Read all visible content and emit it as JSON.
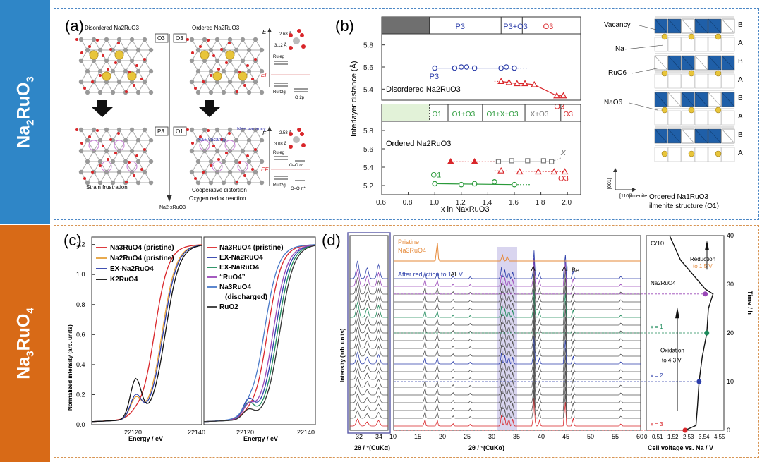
{
  "bands": {
    "top": {
      "base": "Na",
      "sub": "2",
      "tail": "RuO",
      "sub2": "3"
    },
    "bottom": {
      "base": "Na",
      "sub": "3",
      "tail": "RuO",
      "sub2": "4"
    }
  },
  "panel_a": {
    "tag": "(a)",
    "top_left": "Disordered Na2RuO3",
    "top_right": "Ordered Na2RuO3",
    "box_o3": "O3",
    "box_o3b": "O3",
    "box_p3": "P3",
    "box_o1": "O1",
    "na_vac1": "Na+ vacancy",
    "na_vac2": "Na+ vacancy",
    "strain": "Strain frustration",
    "coop": "Cooperative distortion",
    "oxy": "Oxygen redox reaction",
    "bottom_axis": "Na2-xRuO3",
    "d1": "2.68 Å",
    "d2": "3.12 Å",
    "d3": "2.58 Å",
    "d4": "3.08 Å",
    "e_label": "E",
    "ef_label": "EF",
    "ru_eg": "Ru eg",
    "ru_t2g": "Ru t2g",
    "o2p": "O 2p",
    "oo_pi": "O–O π*",
    "oo_sigma": "O–O σ*",
    "ru_eg2": "Ru eg",
    "ru_t2g2": "Ru t2g",
    "oo_pi2": "O–O π*"
  },
  "panel_b": {
    "tag": "(b)",
    "ylabel": "Interlayer distance (Å)",
    "xlabel": "x in NaxRuO3",
    "top_bar": [
      "P3",
      "P3+O3",
      "O3"
    ],
    "bottom_bar": [
      "O1",
      "O1+O3",
      "O1+X+O3",
      "X+O3",
      "O3"
    ],
    "label_disordered": "Disordered Na2RuO3",
    "label_ordered": "Ordered Na2RuO3",
    "series_p3": "P3",
    "series_o3a": "O3",
    "series_o1": "O1",
    "series_x": "X",
    "series_o3b": "O3",
    "yticks_top": [
      "5.8",
      "5.6",
      "5.4"
    ],
    "yticks_bottom": [
      "5.8",
      "5.6",
      "5.4",
      "5.2"
    ],
    "xticks": [
      "0.6",
      "0.8",
      "1.0",
      "1.2",
      "1.4",
      "1.6",
      "1.8",
      "2.0"
    ],
    "struct": {
      "vacancy": "Vacancy",
      "na": "Na",
      "ruo6": "RuO6",
      "nao6": "NaO6",
      "axis1": "[001]",
      "axis2": "[110]ilmenite",
      "caption1": "Ordered Na1RuO3",
      "caption2": "ilmenite structure (O1)",
      "layers": [
        "B",
        "A",
        "B",
        "A",
        "B",
        "A",
        "B",
        "A"
      ]
    }
  },
  "panel_c": {
    "tag": "(c)",
    "ylabel": "Normalized intensity (arb. units)",
    "xlabel": "Energy / eV",
    "yticks": [
      "1.2",
      "1.0",
      "0.8",
      "0.6",
      "0.4",
      "0.2",
      "0.0"
    ],
    "xt_l1": "22120",
    "xt_l2": "22140",
    "xt_r1": "22120",
    "xt_r2": "22140",
    "left_legend": [
      "Na3RuO4 (pristine)",
      "Na2RuO4 (pristine)",
      "EX-Na2RuO4",
      "K2RuO4"
    ],
    "right_legend": [
      "Na3RuO4 (pristine)",
      "EX-Na2RuO4",
      "EX-NaRuO4",
      "“RuO4”",
      "Na3RuO4",
      "(discharged)",
      "RuO2"
    ]
  },
  "panel_d": {
    "tag": "(d)",
    "ylabel": "Intensity (arb. units)",
    "xlabel_small": "2θ / °(CuKα)",
    "xlabel_main": "2θ / °(CuKα)",
    "xlabel_right": "Cell voltage vs. Na / V",
    "ylabel_right": "Time / h",
    "pristine1": "Pristine",
    "pristine2": "Na3RuO4",
    "after_red": "After reduction to 1.5 V",
    "al1": "Al",
    "al2": "Al",
    "al3": "Al",
    "be": "Be",
    "c10": "C/10",
    "red1": "Reduction",
    "red2": "to 1.5 V",
    "nar": "Na2RuO4",
    "x1": "x = 1",
    "x2": "x = 2",
    "x3": "x = 3",
    "ox1": "Oxidation",
    "ox2": "to 4.3 V",
    "small_xticks": [
      "32",
      "34"
    ],
    "main_xticks": [
      "10",
      "15",
      "20",
      "25",
      "30",
      "35",
      "40",
      "45",
      "50",
      "55",
      "60"
    ],
    "right_xticks": [
      "0",
      "0.5",
      "1",
      "1.5",
      "2",
      "2.5",
      "3",
      "3.5",
      "4",
      "4.5",
      "5"
    ],
    "right_yticks": [
      "40",
      "30",
      "20",
      "10",
      "0"
    ]
  },
  "colors": {
    "blue_band": "#2f86c7",
    "orange_band": "#d86a17",
    "red": "#d9262a",
    "blue": "#2c3eaa",
    "green": "#2a9a3a",
    "gray": "#777777",
    "black": "#111111",
    "purple": "#9a48b8"
  }
}
